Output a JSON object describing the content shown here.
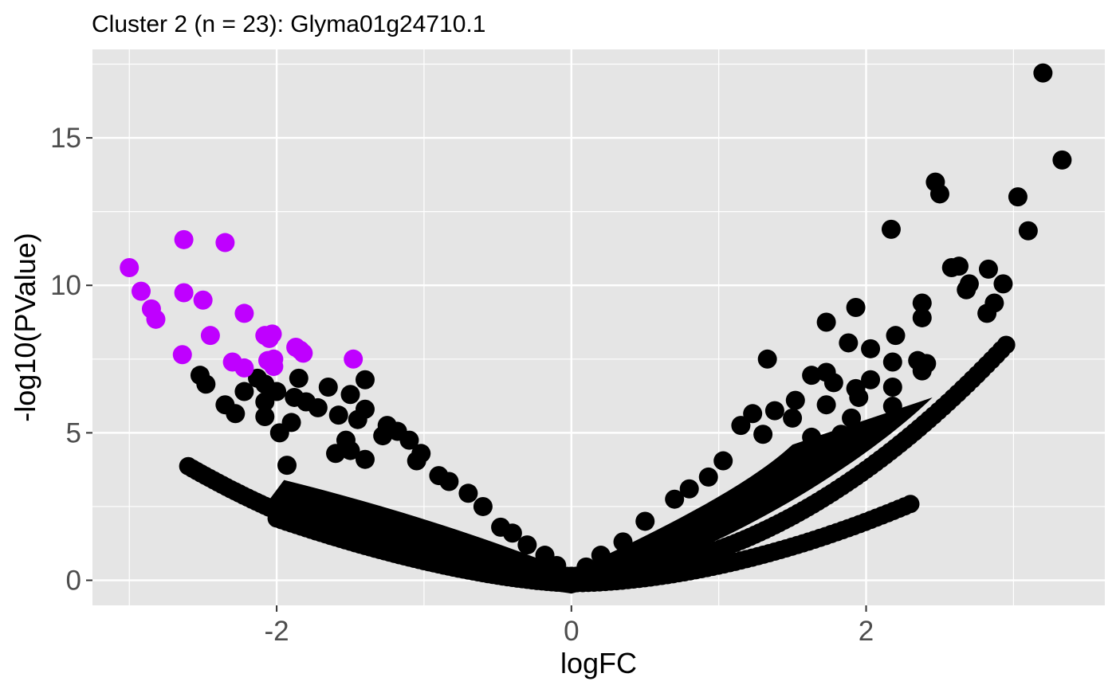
{
  "chart_data": {
    "type": "scatter",
    "title": "Cluster 2 (n = 23): Glyma01g24710.1",
    "xlabel": "logFC",
    "ylabel": "-log10(PValue)",
    "xlim": [
      -3.25,
      3.62
    ],
    "ylim": [
      -0.85,
      18.0
    ],
    "x_ticks": [
      -2,
      0,
      2
    ],
    "y_ticks": [
      0,
      5,
      10,
      15
    ],
    "x_tick_labels": [
      "-2",
      "0",
      "2"
    ],
    "y_tick_labels": [
      "0",
      "5",
      "10",
      "15"
    ],
    "grid": true,
    "legend": "none",
    "colors": {
      "panel_background": "#e5e5e5",
      "grid": "#ffffff",
      "highlight": "#bf00ff",
      "default": "#000000"
    },
    "series": [
      {
        "color": "#bf00ff",
        "points": [
          [
            -3.0,
            10.6
          ],
          [
            -2.92,
            9.8
          ],
          [
            -2.85,
            9.2
          ],
          [
            -2.82,
            8.85
          ],
          [
            -2.63,
            11.55
          ],
          [
            -2.63,
            9.75
          ],
          [
            -2.64,
            7.65
          ],
          [
            -2.5,
            9.5
          ],
          [
            -2.45,
            8.3
          ],
          [
            -2.35,
            11.45
          ],
          [
            -2.22,
            9.05
          ],
          [
            -2.3,
            7.4
          ],
          [
            -2.22,
            7.2
          ],
          [
            -2.08,
            8.3
          ],
          [
            -2.03,
            8.35
          ],
          [
            -2.05,
            8.2
          ],
          [
            -2.02,
            7.5
          ],
          [
            -2.02,
            7.25
          ],
          [
            -1.87,
            7.9
          ],
          [
            -1.82,
            7.7
          ],
          [
            -1.84,
            7.8
          ],
          [
            -1.48,
            7.5
          ],
          [
            -2.06,
            7.45
          ]
        ]
      },
      {
        "color": "#000000",
        "points": [
          [
            3.2,
            17.2
          ],
          [
            3.33,
            14.25
          ],
          [
            2.47,
            13.5
          ],
          [
            2.5,
            13.1
          ],
          [
            3.03,
            13.0
          ],
          [
            3.1,
            11.85
          ],
          [
            2.17,
            11.9
          ],
          [
            2.58,
            10.6
          ],
          [
            2.63,
            10.65
          ],
          [
            2.83,
            10.55
          ],
          [
            2.93,
            10.05
          ],
          [
            2.7,
            10.05
          ],
          [
            2.68,
            9.85
          ],
          [
            2.87,
            9.4
          ],
          [
            2.82,
            9.05
          ],
          [
            2.38,
            9.4
          ],
          [
            2.38,
            8.9
          ],
          [
            1.93,
            9.25
          ],
          [
            2.2,
            8.3
          ],
          [
            1.73,
            8.75
          ],
          [
            1.88,
            8.05
          ],
          [
            2.03,
            7.85
          ],
          [
            2.35,
            7.45
          ],
          [
            2.41,
            7.35
          ],
          [
            2.18,
            7.4
          ],
          [
            2.38,
            7.1
          ],
          [
            1.33,
            7.5
          ],
          [
            1.73,
            7.05
          ],
          [
            1.63,
            6.95
          ],
          [
            1.93,
            6.5
          ],
          [
            2.03,
            6.8
          ],
          [
            1.78,
            6.7
          ],
          [
            2.18,
            6.55
          ],
          [
            1.95,
            6.2
          ],
          [
            1.52,
            6.1
          ],
          [
            1.73,
            5.95
          ],
          [
            1.9,
            5.5
          ],
          [
            2.18,
            5.9
          ],
          [
            2.08,
            5.1
          ],
          [
            1.23,
            5.65
          ],
          [
            1.38,
            5.75
          ],
          [
            1.15,
            5.25
          ],
          [
            1.3,
            4.95
          ],
          [
            1.5,
            5.5
          ],
          [
            1.63,
            4.85
          ],
          [
            1.83,
            4.95
          ],
          [
            1.03,
            4.05
          ],
          [
            0.93,
            3.5
          ],
          [
            0.8,
            3.1
          ],
          [
            0.7,
            2.75
          ],
          [
            0.5,
            2.0
          ],
          [
            0.35,
            1.3
          ],
          [
            -2.52,
            6.95
          ],
          [
            -2.48,
            6.65
          ],
          [
            -2.35,
            5.95
          ],
          [
            -2.28,
            5.65
          ],
          [
            -2.22,
            6.4
          ],
          [
            -2.13,
            6.85
          ],
          [
            -2.08,
            6.65
          ],
          [
            -2.0,
            6.4
          ],
          [
            -2.08,
            6.05
          ],
          [
            -1.85,
            6.85
          ],
          [
            -1.65,
            6.55
          ],
          [
            -1.5,
            6.3
          ],
          [
            -1.4,
            6.8
          ],
          [
            -1.88,
            6.2
          ],
          [
            -1.8,
            6.05
          ],
          [
            -1.72,
            5.85
          ],
          [
            -2.08,
            5.55
          ],
          [
            -1.98,
            5.0
          ],
          [
            -1.9,
            5.35
          ],
          [
            -1.58,
            5.6
          ],
          [
            -1.4,
            5.8
          ],
          [
            -1.45,
            5.45
          ],
          [
            -1.25,
            5.25
          ],
          [
            -1.18,
            5.05
          ],
          [
            -1.28,
            4.9
          ],
          [
            -1.1,
            4.75
          ],
          [
            -1.02,
            4.3
          ],
          [
            -1.53,
            4.75
          ],
          [
            -1.5,
            4.4
          ],
          [
            -1.4,
            4.1
          ],
          [
            -1.6,
            4.3
          ],
          [
            -1.93,
            3.9
          ],
          [
            -1.05,
            4.05
          ],
          [
            -0.9,
            3.55
          ],
          [
            -0.83,
            3.35
          ],
          [
            -0.7,
            2.95
          ],
          [
            -0.6,
            2.5
          ],
          [
            -0.48,
            1.8
          ],
          [
            -0.4,
            1.6
          ],
          [
            -0.3,
            1.2
          ],
          [
            -0.18,
            0.85
          ],
          [
            -0.1,
            0.5
          ],
          [
            0.1,
            0.45
          ],
          [
            0.2,
            0.85
          ]
        ]
      }
    ]
  }
}
